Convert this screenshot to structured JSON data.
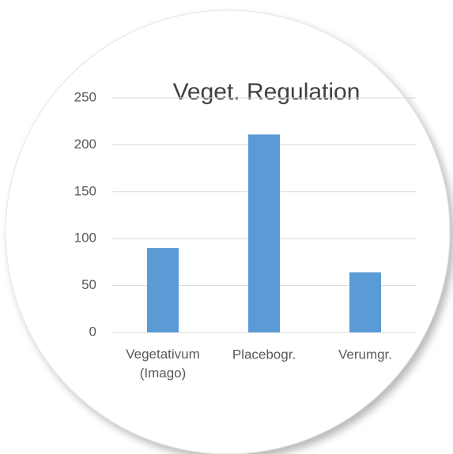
{
  "chart_data": {
    "type": "bar",
    "title": "Veget. Regulation",
    "categories": [
      "Vegetativum (Imago)",
      "Placebogr.",
      "Verumgr."
    ],
    "values": [
      90,
      211,
      64
    ],
    "color": "#5b9bd5",
    "ylim": [
      0,
      250
    ],
    "yticks": [
      0,
      50,
      100,
      150,
      200,
      250
    ],
    "grid": true
  }
}
